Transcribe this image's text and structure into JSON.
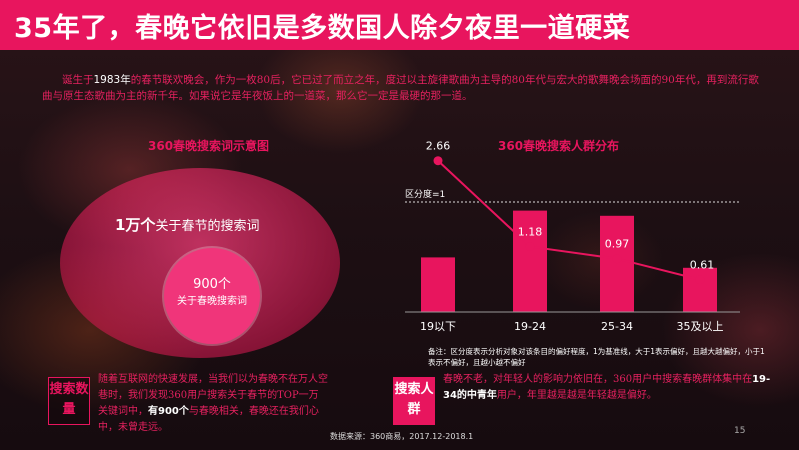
{
  "header": {
    "title": "35年了，春晚它依旧是多数国人除夕夜里一道硬菜"
  },
  "intro": {
    "prefix": "诞生于",
    "year": "1983年",
    "text": "的春节联欢晚会，作为一枚80后，它已过了而立之年，度过以主旋律歌曲为主导的80年代与宏大的歌舞晚会场面的90年代，再到流行歌曲与原生态歌曲为主的新千年。如果说它是年夜饭上的一道菜，那么它一定是最硬的那一道。"
  },
  "left_panel": {
    "title": "360春晚搜索词示意图",
    "outer_num": "1万个",
    "outer_text": "关于春节的搜索词",
    "inner_num": "900个",
    "inner_text": "关于春晚搜索词"
  },
  "chart_data": {
    "type": "bar",
    "title": "360春晚搜索人群分布",
    "categories": [
      "19以下",
      "19-24",
      "25-34",
      "35及以上"
    ],
    "values": [
      2.66,
      1.18,
      0.97,
      0.61
    ],
    "reference_line": {
      "label": "区分度=1",
      "value": 1
    },
    "bar_relative_heights": [
      0.42,
      0.78,
      0.74,
      0.34
    ],
    "grid": false,
    "legend": "none",
    "colors": {
      "bar": "#e8155e",
      "line": "#e8155e",
      "text": "#ffffff"
    }
  },
  "note": "备注：区分度表示分析对象对该条目的偏好程度，1为基准线，大于1表示偏好，且越大越偏好，小于1表示不偏好，且越小越不偏好",
  "bottom_left": {
    "tag": "搜索数量",
    "text1": "随着互联网的快速发展，当我们以为春晚不在万人空巷时，我们发现360用户搜索关于春节的TOP一万关键词中，",
    "bold": "有900个",
    "text2": "与春晚相关，春晚还在我们心中，未曾走远。"
  },
  "bottom_right": {
    "tag": "搜索人群",
    "text1": "春晚不老，对年轻人的影响力依旧在，360用户中搜索春晚群体集中在",
    "bold": "19-34的中青年",
    "text2": "用户，年里越是越是年轻越是偏好。"
  },
  "footer": {
    "source": "数据来源：360商易，2017.12-2018.1",
    "page": "15"
  }
}
